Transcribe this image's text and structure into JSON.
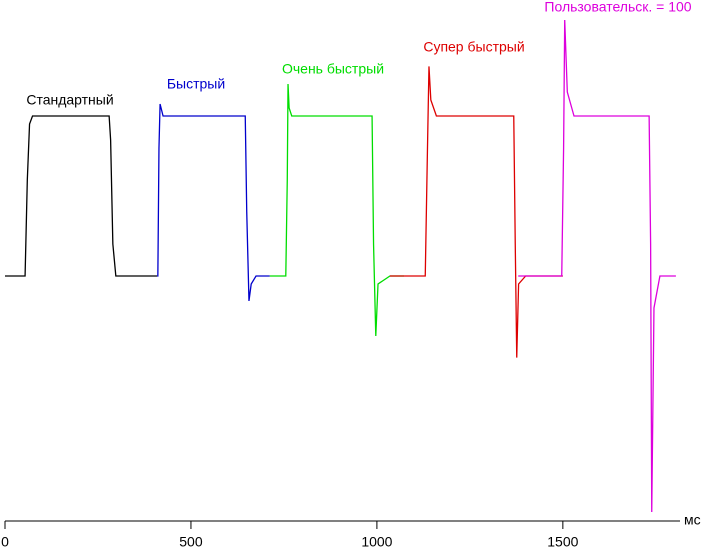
{
  "chart_data": {
    "type": "line",
    "x_label": "мс",
    "xlim": [
      0,
      1815
    ],
    "ylim": [
      -152.5,
      172.5
    ],
    "xticks": [
      0,
      500,
      1000,
      1500
    ],
    "grid": false,
    "series": [
      {
        "name": "Стандартный",
        "color": "#000000",
        "x": [
          0,
          54,
          60,
          66,
          74,
          280,
          284,
          290,
          298,
          409
        ],
        "values": [
          0,
          0,
          60,
          95,
          100,
          100,
          85,
          20,
          0,
          0
        ]
      },
      {
        "name": "Быстрый",
        "color": "#0000cc",
        "x": [
          409,
          411,
          414,
          417,
          425,
          646,
          650,
          656,
          662,
          675,
          712
        ],
        "values": [
          0,
          0,
          80,
          107.5,
          100,
          100,
          40,
          -15.6,
          -5,
          0,
          0
        ]
      },
      {
        "name": "Очень быстрый",
        "color": "#00dd00",
        "x": [
          712,
          755,
          759,
          761,
          764,
          771,
          987,
          991,
          997,
          1003,
          1035,
          1073
        ],
        "values": [
          0,
          0,
          60,
          120,
          105,
          100,
          100,
          20,
          -37.5,
          -5,
          0,
          0
        ]
      },
      {
        "name": "Супер быстрый",
        "color": "#dd0000",
        "x": [
          1035,
          1130,
          1136,
          1140,
          1145,
          1160,
          1368,
          1372,
          1376,
          1381,
          1400,
          1500
        ],
        "values": [
          0,
          0,
          80,
          131,
          110,
          100,
          100,
          20,
          -51,
          -5,
          0,
          0
        ]
      },
      {
        "name": "Пользовательск. = 100",
        "color": "#dd00dd",
        "x": [
          1380,
          1497,
          1502,
          1505,
          1512,
          1530,
          1732,
          1736,
          1739,
          1745,
          1761,
          1804
        ],
        "values": [
          0,
          0,
          80,
          160,
          115,
          100,
          100,
          20,
          -147.5,
          -20,
          0,
          0
        ]
      }
    ]
  }
}
